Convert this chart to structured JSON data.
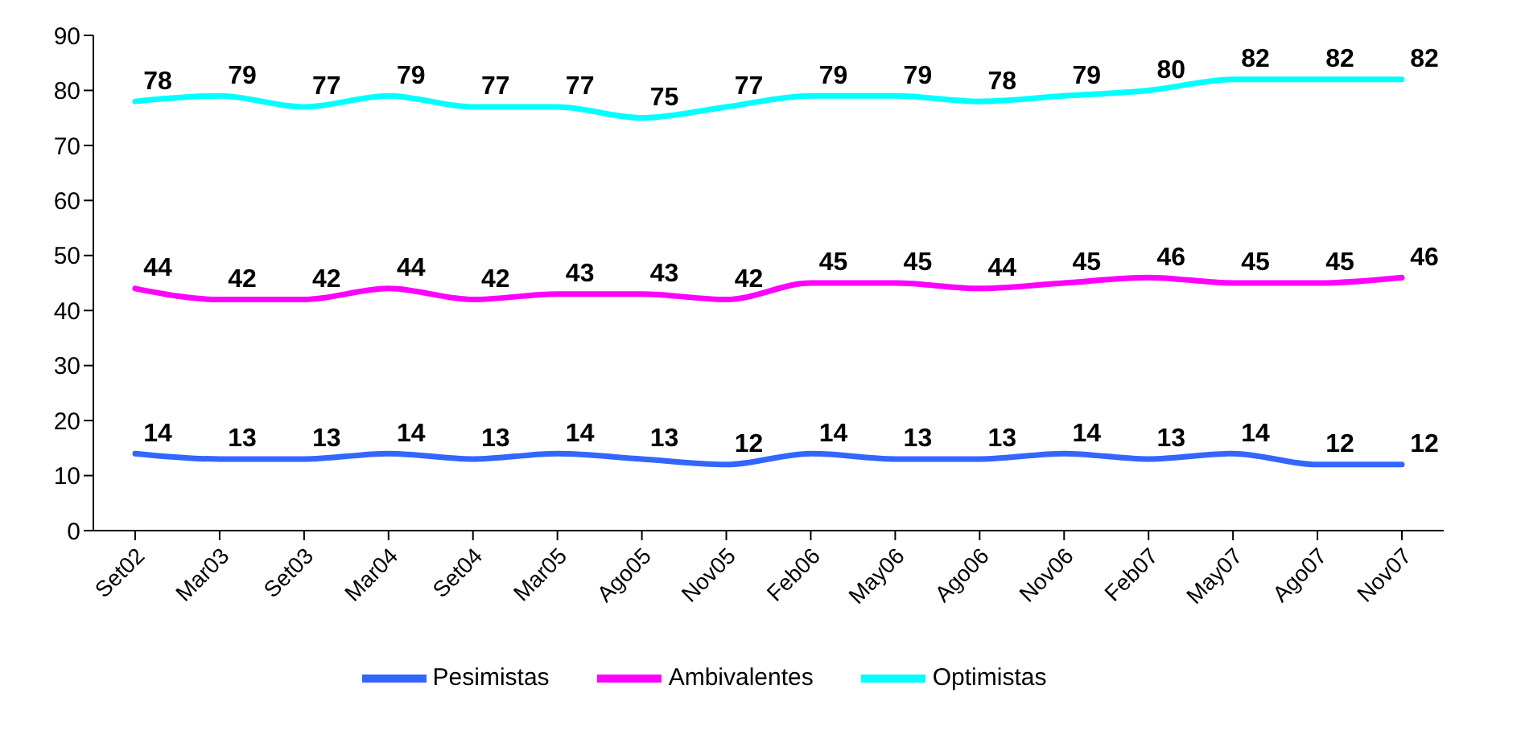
{
  "chart_data": {
    "type": "line",
    "categories": [
      "Set02",
      "Mar03",
      "Set03",
      "Mar04",
      "Set04",
      "Mar05",
      "Ago05",
      "Nov05",
      "Feb06",
      "May06",
      "Ago06",
      "Nov06",
      "Feb07",
      "May07",
      "Ago07",
      "Nov07"
    ],
    "series": [
      {
        "name": "Pesimistas",
        "color": "#3366ff",
        "values": [
          14,
          13,
          13,
          14,
          13,
          14,
          13,
          12,
          14,
          13,
          13,
          14,
          13,
          14,
          12,
          12
        ]
      },
      {
        "name": "Ambivalentes",
        "color": "#ff00ff",
        "values": [
          44,
          42,
          42,
          44,
          42,
          43,
          43,
          42,
          45,
          45,
          44,
          45,
          46,
          45,
          45,
          46
        ]
      },
      {
        "name": "Optimistas",
        "color": "#00ffff",
        "values": [
          78,
          79,
          77,
          79,
          77,
          77,
          75,
          77,
          79,
          79,
          78,
          79,
          80,
          82,
          82,
          82
        ]
      }
    ],
    "ylim": [
      0,
      90
    ],
    "yticks": [
      0,
      10,
      20,
      30,
      40,
      50,
      60,
      70,
      80,
      90
    ],
    "legend": "bottom",
    "marker": "none",
    "line_style": "solid",
    "data_labels": true
  }
}
